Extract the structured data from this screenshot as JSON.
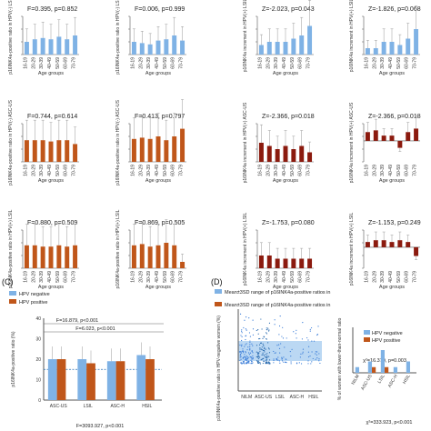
{
  "xlabel_groups": "Age groups",
  "age_groups": [
    "16-19",
    "20-29",
    "30-39",
    "40-49",
    "50-59",
    "60-69",
    "70-79"
  ],
  "colors": {
    "blue": "#7fb2e5",
    "orange": "#c0561a",
    "dark_red": "#8b1a0e",
    "band": "#9ec8ee"
  },
  "panel_c_letter": "(C)",
  "panel_d_letter": "(D)",
  "top_left_ylabels": [
    "p16INK4a-positive ratio in HPV(-) LSIL",
    "p16INK4a-positive ratio in HPV(-) ASC-US",
    "p16INK4a-positive ratio in HPV(+) LSIL"
  ],
  "top_right_ylabels": [
    "p16INK4a increment in HPV(+) LSIL",
    "p16INK4a increment in HPV(+) ASC-US",
    "p16INK4a increment in HPV(+) LSIL"
  ],
  "chart_data": [
    {
      "type": "bar",
      "panel": "row1-col1",
      "categories": [
        "16-19",
        "20-29",
        "30-39",
        "40-49",
        "50-59",
        "60-69",
        "70-79"
      ],
      "values": [
        10,
        12,
        13,
        12,
        14,
        12,
        15
      ],
      "color": "blue",
      "stat": "F=0.395, p=0.852"
    },
    {
      "type": "bar",
      "panel": "row1-col2",
      "categories": [
        "16-19",
        "20-29",
        "30-39",
        "40-49",
        "50-59",
        "60-69",
        "70-79"
      ],
      "values": [
        10,
        9,
        8,
        11,
        12,
        15,
        11
      ],
      "color": "blue",
      "stat": "F=0.006, p=0.999"
    },
    {
      "type": "bar",
      "panel": "row1-col3",
      "categories": [
        "16-19",
        "20-29",
        "30-39",
        "40-49",
        "50-59",
        "60-69",
        "70-79"
      ],
      "values": [
        3,
        4,
        4,
        4,
        5,
        6,
        9
      ],
      "color": "blue",
      "stat": "Z=-2.023, p=0.043"
    },
    {
      "type": "bar",
      "panel": "row1-col4",
      "categories": [
        "16-19",
        "20-29",
        "30-39",
        "40-49",
        "50-59",
        "60-69",
        "70-79"
      ],
      "values": [
        2,
        2,
        4,
        4,
        3,
        5,
        8
      ],
      "color": "blue",
      "stat": "Z=-1.826, p=0.068"
    },
    {
      "type": "bar",
      "panel": "row2-col1",
      "categories": [
        "16-19",
        "20-29",
        "30-39",
        "40-49",
        "50-59",
        "60-69",
        "70-79"
      ],
      "values": [
        17,
        17,
        17,
        16,
        17,
        17,
        14
      ],
      "color": "orange",
      "stat": "F=0.744, p=0.614"
    },
    {
      "type": "bar",
      "panel": "row2-col2",
      "categories": [
        "16-19",
        "20-29",
        "30-39",
        "40-49",
        "50-59",
        "60-69",
        "70-79"
      ],
      "values": [
        18,
        19,
        18,
        20,
        17,
        20,
        26
      ],
      "color": "orange",
      "stat": "F=0.413, p=0.797"
    },
    {
      "type": "bar",
      "panel": "row2-col3",
      "categories": [
        "16-19",
        "20-29",
        "30-39",
        "40-49",
        "50-59",
        "60-69",
        "70-79"
      ],
      "values": [
        6,
        5,
        4,
        5,
        4,
        5,
        3
      ],
      "color": "dark_red",
      "stat": "Z=-2.366, p=0.018"
    },
    {
      "type": "bar",
      "panel": "row2-col4",
      "categories": [
        "16-19",
        "20-29",
        "30-39",
        "40-49",
        "50-59",
        "60-69",
        "70-79"
      ],
      "values": [
        5,
        6,
        3,
        3,
        -4,
        5,
        7
      ],
      "color": "dark_red",
      "stat": "Z=-2.366, p=0.018"
    },
    {
      "type": "bar",
      "panel": "row3-col1",
      "categories": [
        "16-19",
        "20-29",
        "30-39",
        "40-49",
        "50-59",
        "60-69",
        "70-79"
      ],
      "values": [
        18,
        18,
        17,
        17,
        18,
        17,
        18
      ],
      "color": "orange",
      "stat": "F=0.880, p=0.509"
    },
    {
      "type": "bar",
      "panel": "row3-col2",
      "categories": [
        "16-19",
        "20-29",
        "30-39",
        "40-49",
        "50-59",
        "60-69",
        "70-79"
      ],
      "values": [
        18,
        19,
        17,
        18,
        20,
        18,
        5
      ],
      "color": "orange",
      "stat": "F=0.869, p=0.505"
    },
    {
      "type": "bar",
      "panel": "row3-col3",
      "categories": [
        "16-19",
        "20-29",
        "30-39",
        "40-49",
        "50-59",
        "60-69",
        "70-79"
      ],
      "values": [
        4,
        4,
        3,
        3,
        3,
        3,
        3
      ],
      "color": "dark_red",
      "stat": "Z=-1.753, p=0.080"
    },
    {
      "type": "bar",
      "panel": "row3-col4",
      "categories": [
        "16-19",
        "20-29",
        "30-39",
        "40-49",
        "50-59",
        "60-69",
        "70-79"
      ],
      "values": [
        3,
        4,
        4,
        3,
        4,
        3,
        -5
      ],
      "color": "dark_red",
      "stat": "Z=-1.153, p=0.249"
    },
    {
      "type": "bar",
      "panel": "C",
      "categories": [
        "ASC-US",
        "LSIL",
        "ASC-H",
        "HSIL"
      ],
      "series": [
        {
          "name": "HPV negative",
          "values": [
            20,
            20,
            19,
            22
          ]
        },
        {
          "name": "HPV positive",
          "values": [
            20,
            18,
            19,
            20
          ]
        }
      ],
      "stats": [
        "F=16.879, p<0.001",
        "F=6.023, p<0.001",
        "F=3093.927, p<0.001"
      ],
      "ylabel": "p16INK4a-positive ratio (%)"
    },
    {
      "type": "scatter",
      "panel": "D-left",
      "categories": [
        "NILM",
        "ASC-US",
        "LSIL",
        "ASC-H",
        "HSIL"
      ],
      "legend": [
        "Mean±3SD range of p16INK4a-positive ratios in HPV-negative NILM women",
        "Mean±3SD range of p16INK4a-positive ratios in HPV-positive NILM women"
      ],
      "ylabel": "p16INK4a-positive ratio in HPV-negative women (%)"
    },
    {
      "type": "bar",
      "panel": "D-right",
      "categories": [
        "NILM",
        "ASC-US",
        "LSIL",
        "ASC-H",
        "HSIL"
      ],
      "series": [
        {
          "name": "HPV negative",
          "values": [
            0.5,
            1,
            2,
            0.5,
            1
          ]
        },
        {
          "name": "HPV positive",
          "values": [
            0,
            0.5,
            0.5,
            0,
            0
          ]
        }
      ],
      "stats": [
        "χ²=16.370, p=0.003",
        "χ²=333.923, p<0.001"
      ],
      "ylabel": "% of women with lower-than-normal ratio of p16INK4a expression"
    }
  ]
}
